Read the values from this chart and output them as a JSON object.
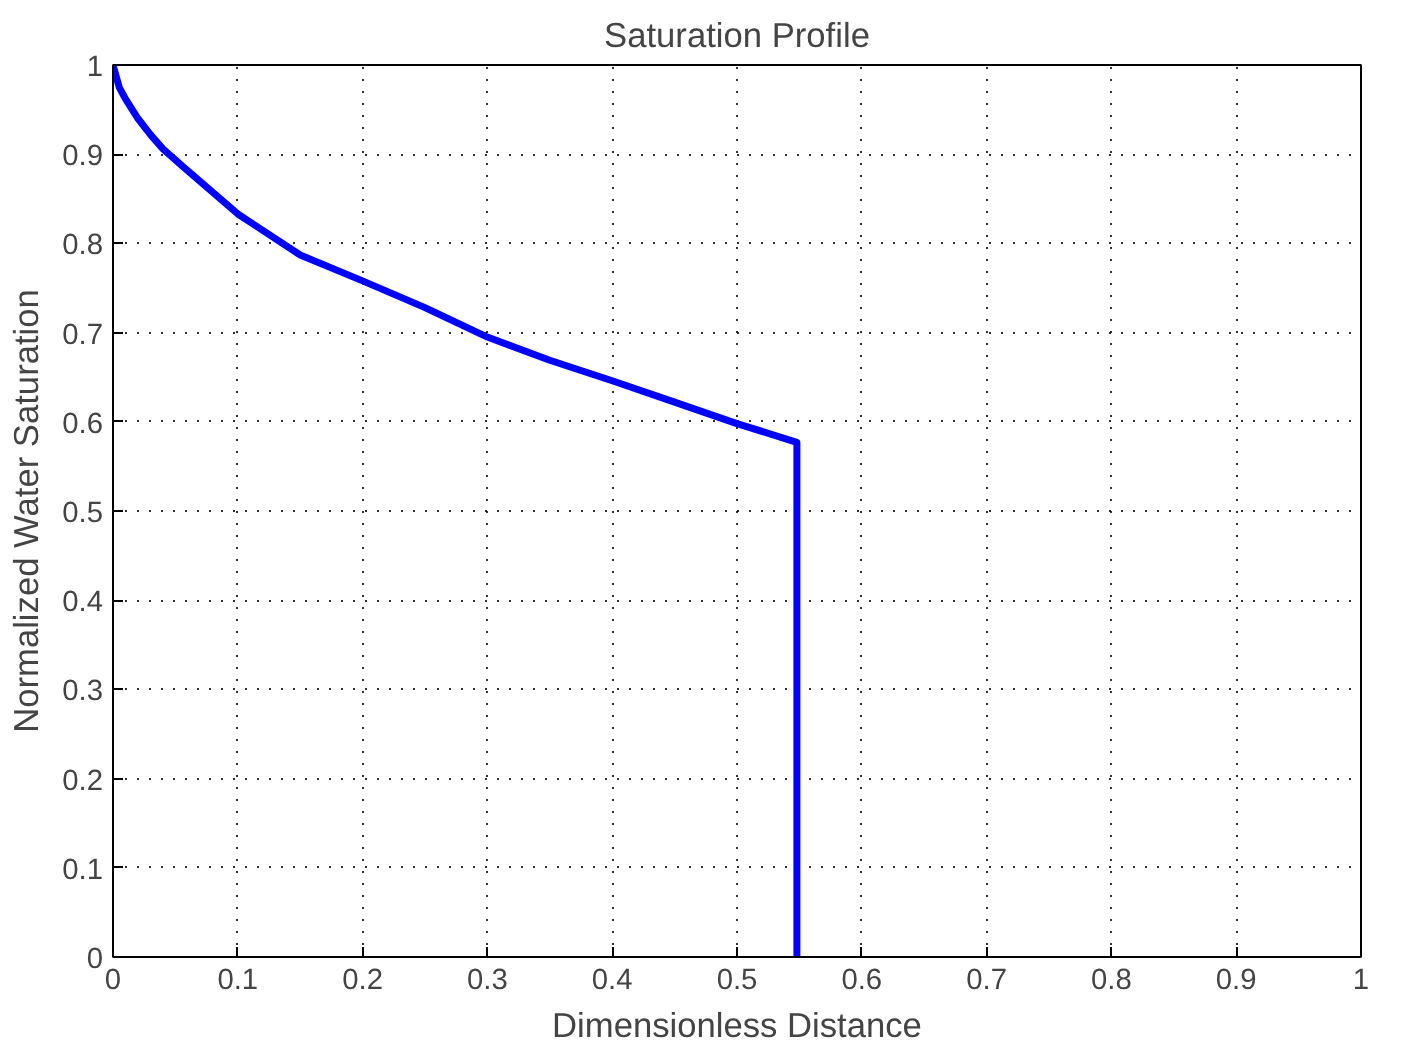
{
  "chart_data": {
    "type": "line",
    "title": "Saturation Profile",
    "xlabel": "Dimensionless Distance",
    "ylabel": "Normalized Water Saturation",
    "series": [
      {
        "color": "#0000ff",
        "x": [
          0,
          0.005,
          0.01,
          0.02,
          0.03,
          0.04,
          0.057,
          0.1,
          0.15,
          0.2,
          0.25,
          0.3,
          0.35,
          0.4,
          0.45,
          0.5,
          0.548,
          0.548
        ],
        "values": [
          1,
          0.975,
          0.962,
          0.94,
          0.922,
          0.906,
          0.885,
          0.833,
          0.787,
          0.758,
          0.728,
          0.695,
          0.669,
          0.646,
          0.622,
          0.598,
          0.577,
          0
        ]
      }
    ],
    "xlim": [
      0,
      1
    ],
    "ylim": [
      0,
      1
    ],
    "xticks": [
      0,
      0.1,
      0.2,
      0.3,
      0.4,
      0.5,
      0.6,
      0.7,
      0.8,
      0.9,
      1
    ],
    "yticks": [
      0,
      0.1,
      0.2,
      0.3,
      0.4,
      0.5,
      0.6,
      0.7,
      0.8,
      0.9,
      1
    ],
    "grid": true,
    "line_style": "solid"
  }
}
